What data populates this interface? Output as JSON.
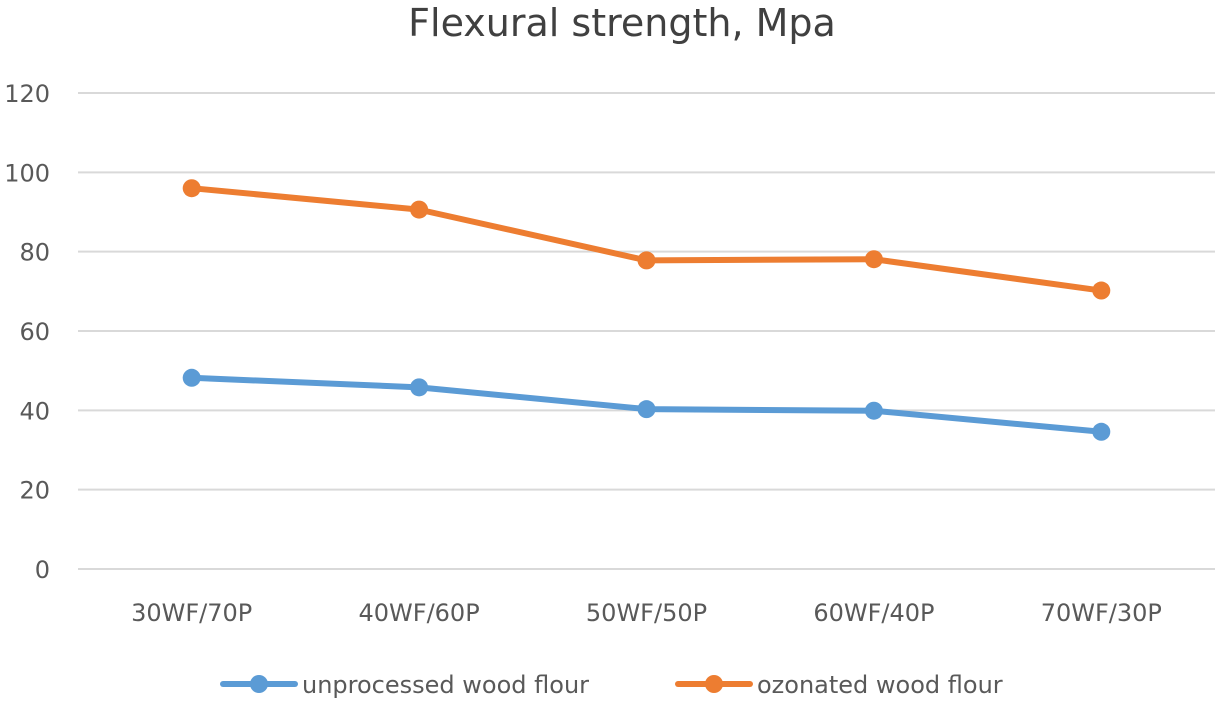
{
  "chart_data": {
    "type": "line",
    "title": "Flexural strength, Mpa",
    "xlabel": "",
    "ylabel": "",
    "categories": [
      "30WF/70P",
      "40WF/60P",
      "50WF/50P",
      "60WF/40P",
      "70WF/30P"
    ],
    "ylim": [
      0,
      120
    ],
    "yticks": [
      0,
      20,
      40,
      60,
      80,
      100,
      120
    ],
    "grid": true,
    "legend_position": "bottom",
    "series": [
      {
        "name": "unprocessed wood flour",
        "color": "#5b9bd5",
        "values": [
          48.2,
          45.8,
          40.3,
          39.9,
          34.6
        ]
      },
      {
        "name": "ozonated wood flour",
        "color": "#ed7d31",
        "values": [
          96,
          90.6,
          77.8,
          78.1,
          70.2
        ]
      }
    ]
  }
}
